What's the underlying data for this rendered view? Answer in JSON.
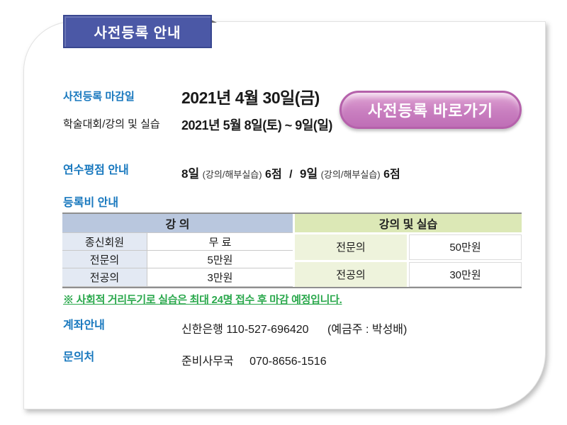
{
  "ribbon": {
    "title": "사전등록 안내",
    "bg_color": "#4b58a6",
    "border_color": "#394790"
  },
  "rows": {
    "deadline": {
      "label": "사전등록 마감일",
      "value": "2021년 4월 30일(금)"
    },
    "conference": {
      "label": "학술대회/강의 및 실습",
      "value": "2021년 5월 8일(토) ~ 9일(일)"
    }
  },
  "button": {
    "label": "사전등록 바로가기",
    "bg_color": "#c97fc0",
    "border_color": "#b561ab"
  },
  "credit": {
    "label": "연수평점 안내",
    "day1": "8일",
    "detail1": "(강의/해부실습)",
    "score1": "6점",
    "separator": "/",
    "day2": "9일",
    "detail2": "(강의/해부실습)",
    "score2": "6점"
  },
  "fees": {
    "heading": "등록비 안내",
    "left_header": "강 의",
    "right_header": "강의 및 실습",
    "left_rows": [
      {
        "label": "종신회원",
        "value": "무 료"
      },
      {
        "label": "전문의",
        "value": "5만원"
      },
      {
        "label": "전공의",
        "value": "3만원"
      }
    ],
    "right_rows": [
      {
        "label": "전문의",
        "value": "50만원"
      },
      {
        "label": "전공의",
        "value": "30만원"
      }
    ],
    "colors": {
      "left_header_bg": "#b9c7de",
      "right_header_bg": "#dce8b6",
      "left_label_bg": "#e3e9f3",
      "right_label_bg": "#eef3dc"
    }
  },
  "note": {
    "text": "※ 사회적 거리두기로 실습은 최대 24명 접수 후 마감 예정입니다.",
    "color": "#2aa84c"
  },
  "account": {
    "label": "계좌안내",
    "bank": "신한은행 110-527-696420",
    "holder": "(예금주 : 박성배)"
  },
  "contact": {
    "label": "문의처",
    "office": "준비사무국",
    "phone": "070-8656-1516"
  },
  "accent_blue": "#1878be"
}
